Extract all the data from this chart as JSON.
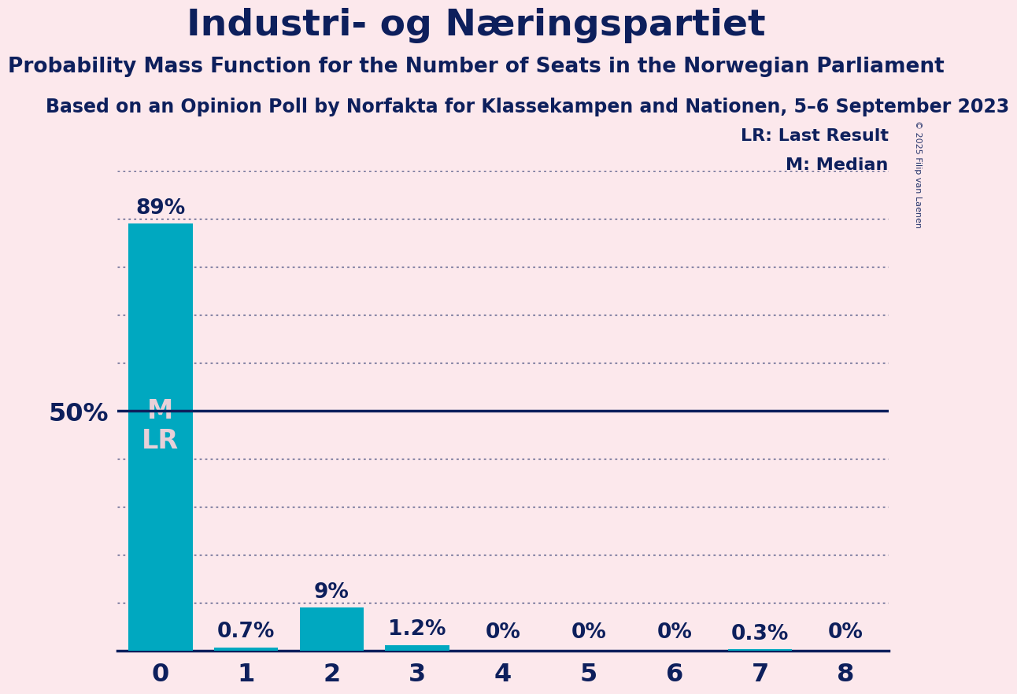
{
  "title": "Industri- og Næringspartiet",
  "subtitle": "Probability Mass Function for the Number of Seats in the Norwegian Parliament",
  "source": "Based on an Opinion Poll by Norfakta for Klassekampen and Nationen, 5–6 September 2023",
  "copyright": "© 2025 Filip van Laenen",
  "categories": [
    0,
    1,
    2,
    3,
    4,
    5,
    6,
    7,
    8
  ],
  "values": [
    89.0,
    0.7,
    9.0,
    1.2,
    0.0,
    0.0,
    0.0,
    0.3,
    0.0
  ],
  "labels": [
    "89%",
    "0.7%",
    "9%",
    "1.2%",
    "0%",
    "0%",
    "0%",
    "0.3%",
    "0%"
  ],
  "bar_color": "#00a8c0",
  "background_color": "#fce8ec",
  "text_color": "#0d1f5c",
  "bar_label_color_inside": "#e8d0d8",
  "ylim_max": 100,
  "fifty_pct_line": 50,
  "legend_lr": "LR: Last Result",
  "legend_m": "M: Median",
  "title_fontsize": 34,
  "subtitle_fontsize": 19,
  "source_fontsize": 17,
  "bar_label_fontsize": 19,
  "xtick_fontsize": 23,
  "ytick_fontsize": 23,
  "ml_fontsize": 24,
  "legend_fontsize": 16,
  "copyright_fontsize": 8,
  "ytick_label": "50%",
  "ytick_value": 50,
  "grid_levels": [
    10,
    20,
    30,
    40,
    50,
    60,
    70,
    80,
    90,
    100
  ]
}
